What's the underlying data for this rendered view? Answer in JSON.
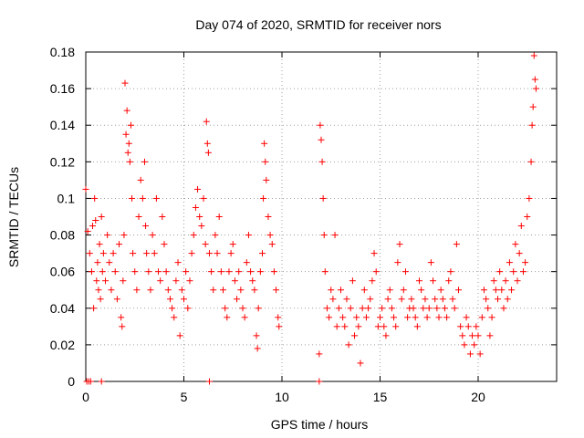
{
  "chart_data": {
    "type": "scatter",
    "title": "Day 074 of 2020, SRMTID for receiver nors",
    "xlabel": "GPS time / hours",
    "ylabel": "SRMTID / TECUs",
    "xlim": [
      0,
      24
    ],
    "ylim": [
      0,
      0.18
    ],
    "x_ticks": [
      0,
      5,
      10,
      15,
      20
    ],
    "y_ticks": [
      0,
      0.02,
      0.04,
      0.06,
      0.08,
      0.1,
      0.12,
      0.14,
      0.16,
      0.18
    ],
    "x_tick_labels": [
      "0",
      "5",
      "10",
      "15",
      "20"
    ],
    "y_tick_labels": [
      "0",
      "0.02",
      "0.04",
      "0.06",
      "0.08",
      "0.1",
      "0.12",
      "0.14",
      "0.16",
      "0.18"
    ],
    "grid": true,
    "marker": "+",
    "color": "#ff0000",
    "series": [
      {
        "name": "SRMTID",
        "points": [
          [
            0,
            0.105
          ],
          [
            0.1,
            0.082
          ],
          [
            0.2,
            0.07
          ],
          [
            0.3,
            0.06
          ],
          [
            0.35,
            0.085
          ],
          [
            0.4,
            0.04
          ],
          [
            0.45,
            0.1
          ],
          [
            0.5,
            0.088
          ],
          [
            0.55,
            0.055
          ],
          [
            0.6,
            0.065
          ],
          [
            0.65,
            0.05
          ],
          [
            0.7,
            0.075
          ],
          [
            0.75,
            0.045
          ],
          [
            0.8,
            0.09
          ],
          [
            0.85,
            0.06
          ],
          [
            0.9,
            0.07
          ],
          [
            1.0,
            0.055
          ],
          [
            1.1,
            0.08
          ],
          [
            1.2,
            0.065
          ],
          [
            1.3,
            0.05
          ],
          [
            1.4,
            0.07
          ],
          [
            1.5,
            0.06
          ],
          [
            1.6,
            0.045
          ],
          [
            1.7,
            0.075
          ],
          [
            1.8,
            0.035
          ],
          [
            1.85,
            0.03
          ],
          [
            1.9,
            0.055
          ],
          [
            1.95,
            0.08
          ],
          [
            2.0,
            0.163
          ],
          [
            2.05,
            0.135
          ],
          [
            2.1,
            0.148
          ],
          [
            2.15,
            0.125
          ],
          [
            2.2,
            0.13
          ],
          [
            2.25,
            0.12
          ],
          [
            2.3,
            0.14
          ],
          [
            2.35,
            0.1
          ],
          [
            2.4,
            0.07
          ],
          [
            2.5,
            0.06
          ],
          [
            2.6,
            0.05
          ],
          [
            2.7,
            0.09
          ],
          [
            2.8,
            0.11
          ],
          [
            2.9,
            0.1
          ],
          [
            3.0,
            0.12
          ],
          [
            3.05,
            0.085
          ],
          [
            3.1,
            0.07
          ],
          [
            3.2,
            0.06
          ],
          [
            3.3,
            0.05
          ],
          [
            3.4,
            0.08
          ],
          [
            3.5,
            0.07
          ],
          [
            3.6,
            0.1
          ],
          [
            3.7,
            0.06
          ],
          [
            3.8,
            0.055
          ],
          [
            3.9,
            0.09
          ],
          [
            4.0,
            0.075
          ],
          [
            4.1,
            0.06
          ],
          [
            4.2,
            0.05
          ],
          [
            4.3,
            0.045
          ],
          [
            4.4,
            0.04
          ],
          [
            4.5,
            0.035
          ],
          [
            4.6,
            0.055
          ],
          [
            4.7,
            0.065
          ],
          [
            4.8,
            0.025
          ],
          [
            4.9,
            0.05
          ],
          [
            5.0,
            0.045
          ],
          [
            5.1,
            0.06
          ],
          [
            5.2,
            0.04
          ],
          [
            5.3,
            0.055
          ],
          [
            5.4,
            0.07
          ],
          [
            5.5,
            0.08
          ],
          [
            5.6,
            0.095
          ],
          [
            5.7,
            0.105
          ],
          [
            5.8,
            0.09
          ],
          [
            5.9,
            0.085
          ],
          [
            6.0,
            0.1
          ],
          [
            6.1,
            0.075
          ],
          [
            6.15,
            0.142
          ],
          [
            6.2,
            0.13
          ],
          [
            6.25,
            0.125
          ],
          [
            6.3,
            0.07
          ],
          [
            6.4,
            0.06
          ],
          [
            6.5,
            0.05
          ],
          [
            6.6,
            0.08
          ],
          [
            6.7,
            0.07
          ],
          [
            6.8,
            0.09
          ],
          [
            6.9,
            0.06
          ],
          [
            7.0,
            0.05
          ],
          [
            7.1,
            0.04
          ],
          [
            7.2,
            0.035
          ],
          [
            7.3,
            0.06
          ],
          [
            7.4,
            0.07
          ],
          [
            7.5,
            0.075
          ],
          [
            7.6,
            0.055
          ],
          [
            7.7,
            0.045
          ],
          [
            7.8,
            0.06
          ],
          [
            7.9,
            0.05
          ],
          [
            8.0,
            0.04
          ],
          [
            8.1,
            0.035
          ],
          [
            8.2,
            0.065
          ],
          [
            8.3,
            0.08
          ],
          [
            8.4,
            0.06
          ],
          [
            8.5,
            0.055
          ],
          [
            8.6,
            0.05
          ],
          [
            8.7,
            0.025
          ],
          [
            8.75,
            0.018
          ],
          [
            8.8,
            0.04
          ],
          [
            8.9,
            0.06
          ],
          [
            9.0,
            0.07
          ],
          [
            9.05,
            0.1
          ],
          [
            9.1,
            0.13
          ],
          [
            9.15,
            0.12
          ],
          [
            9.2,
            0.11
          ],
          [
            9.3,
            0.09
          ],
          [
            9.4,
            0.08
          ],
          [
            9.5,
            0.075
          ],
          [
            9.6,
            0.06
          ],
          [
            9.7,
            0.05
          ],
          [
            9.8,
            0.035
          ],
          [
            9.85,
            0.03
          ],
          [
            11.9,
            0.015
          ],
          [
            11.95,
            0.14
          ],
          [
            12.0,
            0.132
          ],
          [
            12.05,
            0.12
          ],
          [
            12.1,
            0.1
          ],
          [
            12.15,
            0.08
          ],
          [
            12.2,
            0.06
          ],
          [
            12.3,
            0.04
          ],
          [
            12.4,
            0.035
          ],
          [
            12.5,
            0.05
          ],
          [
            12.6,
            0.045
          ],
          [
            12.7,
            0.08
          ],
          [
            12.8,
            0.03
          ],
          [
            12.9,
            0.04
          ],
          [
            13.0,
            0.05
          ],
          [
            13.1,
            0.035
          ],
          [
            13.2,
            0.03
          ],
          [
            13.3,
            0.045
          ],
          [
            13.4,
            0.02
          ],
          [
            13.5,
            0.04
          ],
          [
            13.6,
            0.055
          ],
          [
            13.7,
            0.025
          ],
          [
            13.8,
            0.035
          ],
          [
            13.9,
            0.03
          ],
          [
            14.0,
            0.01
          ],
          [
            14.1,
            0.04
          ],
          [
            14.2,
            0.05
          ],
          [
            14.3,
            0.035
          ],
          [
            14.4,
            0.04
          ],
          [
            14.5,
            0.045
          ],
          [
            14.6,
            0.055
          ],
          [
            14.7,
            0.07
          ],
          [
            14.8,
            0.06
          ],
          [
            14.9,
            0.03
          ],
          [
            15.0,
            0.035
          ],
          [
            15.1,
            0.04
          ],
          [
            15.2,
            0.03
          ],
          [
            15.3,
            0.025
          ],
          [
            15.4,
            0.045
          ],
          [
            15.5,
            0.05
          ],
          [
            15.6,
            0.04
          ],
          [
            15.7,
            0.035
          ],
          [
            15.8,
            0.03
          ],
          [
            15.9,
            0.065
          ],
          [
            16.0,
            0.075
          ],
          [
            16.1,
            0.045
          ],
          [
            16.2,
            0.05
          ],
          [
            16.3,
            0.06
          ],
          [
            16.4,
            0.035
          ],
          [
            16.5,
            0.04
          ],
          [
            16.6,
            0.045
          ],
          [
            16.7,
            0.04
          ],
          [
            16.8,
            0.035
          ],
          [
            16.9,
            0.03
          ],
          [
            17.0,
            0.055
          ],
          [
            17.1,
            0.05
          ],
          [
            17.2,
            0.04
          ],
          [
            17.3,
            0.045
          ],
          [
            17.4,
            0.035
          ],
          [
            17.5,
            0.04
          ],
          [
            17.6,
            0.065
          ],
          [
            17.7,
            0.055
          ],
          [
            17.8,
            0.045
          ],
          [
            17.9,
            0.04
          ],
          [
            18.0,
            0.035
          ],
          [
            18.1,
            0.05
          ],
          [
            18.2,
            0.045
          ],
          [
            18.3,
            0.04
          ],
          [
            18.4,
            0.035
          ],
          [
            18.5,
            0.055
          ],
          [
            18.6,
            0.06
          ],
          [
            18.7,
            0.045
          ],
          [
            18.8,
            0.04
          ],
          [
            18.9,
            0.075
          ],
          [
            19.0,
            0.05
          ],
          [
            19.1,
            0.03
          ],
          [
            19.2,
            0.025
          ],
          [
            19.3,
            0.02
          ],
          [
            19.4,
            0.035
          ],
          [
            19.5,
            0.03
          ],
          [
            19.6,
            0.015
          ],
          [
            19.7,
            0.025
          ],
          [
            19.8,
            0.02
          ],
          [
            19.9,
            0.03
          ],
          [
            20.0,
            0.025
          ],
          [
            20.1,
            0.015
          ],
          [
            20.2,
            0.035
          ],
          [
            20.3,
            0.05
          ],
          [
            20.4,
            0.045
          ],
          [
            20.5,
            0.04
          ],
          [
            20.6,
            0.025
          ],
          [
            20.7,
            0.035
          ],
          [
            20.8,
            0.055
          ],
          [
            20.9,
            0.05
          ],
          [
            21.0,
            0.045
          ],
          [
            21.1,
            0.06
          ],
          [
            21.2,
            0.05
          ],
          [
            21.3,
            0.04
          ],
          [
            21.4,
            0.055
          ],
          [
            21.5,
            0.045
          ],
          [
            21.6,
            0.065
          ],
          [
            21.7,
            0.05
          ],
          [
            21.8,
            0.06
          ],
          [
            21.9,
            0.075
          ],
          [
            22.0,
            0.055
          ],
          [
            22.1,
            0.07
          ],
          [
            22.2,
            0.085
          ],
          [
            22.3,
            0.06
          ],
          [
            22.4,
            0.065
          ],
          [
            22.5,
            0.09
          ],
          [
            22.6,
            0.1
          ],
          [
            22.7,
            0.12
          ],
          [
            22.75,
            0.14
          ],
          [
            22.8,
            0.15
          ],
          [
            22.85,
            0.178
          ],
          [
            22.9,
            0.165
          ],
          [
            22.95,
            0.16
          ],
          [
            0.05,
            0.0
          ],
          [
            0.15,
            0.0
          ],
          [
            0.25,
            0.0
          ],
          [
            0.8,
            0.0
          ],
          [
            6.3,
            0.0
          ],
          [
            11.9,
            0.0
          ]
        ]
      }
    ]
  }
}
